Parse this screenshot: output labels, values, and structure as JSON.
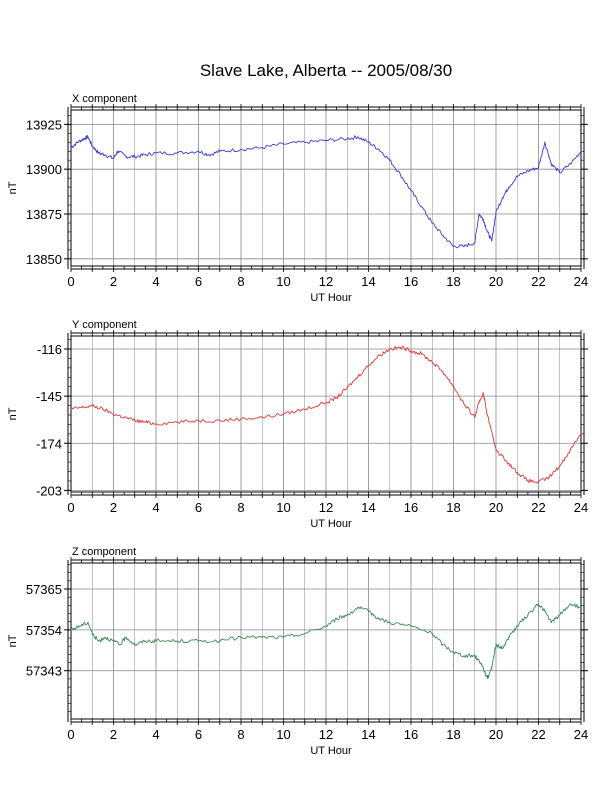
{
  "title": "Slave Lake, Alberta -- 2005/08/30",
  "chart_data": [
    {
      "type": "line",
      "panel_title": "X component",
      "xlabel": "UT Hour",
      "ylabel": "nT",
      "xlim": [
        0,
        24
      ],
      "ylim": [
        13846,
        13933
      ],
      "xticks": [
        0,
        2,
        4,
        6,
        8,
        10,
        12,
        14,
        16,
        18,
        20,
        22,
        24
      ],
      "yticks": [
        13850,
        13875,
        13900,
        13925
      ],
      "grid": true,
      "color": "#3d3dd6",
      "series": [
        {
          "x": [
            0,
            0.3,
            0.6,
            0.8,
            1.0,
            1.3,
            1.6,
            2.0,
            2.2,
            2.6,
            3.0,
            3.5,
            4.0,
            5.0,
            6.0,
            6.5,
            7.0,
            8.0,
            9.0,
            10.0,
            11.0,
            12.0,
            13.0,
            13.5,
            14.0,
            14.5,
            15.0,
            15.5,
            16.0,
            16.5,
            17.0,
            17.5,
            18.0,
            18.5,
            19.0,
            19.2,
            19.4,
            19.6,
            19.8,
            20.0,
            20.3,
            20.6,
            21.0,
            21.5,
            22.0,
            22.3,
            22.6,
            23.0,
            23.5,
            24.0
          ],
          "y": [
            13912,
            13915,
            13917,
            13918,
            13913,
            13909,
            13908,
            13906,
            13910,
            13907,
            13907,
            13908,
            13909,
            13909,
            13910,
            13908,
            13910,
            13911,
            13912,
            13914,
            13915,
            13916,
            13917,
            13918,
            13915,
            13911,
            13905,
            13897,
            13888,
            13879,
            13870,
            13863,
            13857,
            13857,
            13859,
            13875,
            13872,
            13865,
            13860,
            13876,
            13884,
            13890,
            13896,
            13899,
            13901,
            13915,
            13903,
            13898,
            13903,
            13910
          ]
        }
      ]
    },
    {
      "type": "line",
      "panel_title": "Y component",
      "xlabel": "UT Hour",
      "ylabel": "nT",
      "xlim": [
        0,
        24
      ],
      "ylim": [
        -204,
        -108
      ],
      "xticks": [
        0,
        2,
        4,
        6,
        8,
        10,
        12,
        14,
        16,
        18,
        20,
        22,
        24
      ],
      "yticks": [
        -116,
        -145,
        -174,
        -203
      ],
      "grid": true,
      "color": "#e23a3a",
      "series": [
        {
          "x": [
            0,
            0.5,
            1.0,
            1.5,
            2.0,
            2.5,
            3.0,
            3.5,
            4.0,
            5.0,
            6.0,
            7.0,
            8.0,
            9.0,
            10.0,
            11.0,
            12.0,
            12.5,
            13.0,
            13.5,
            14.0,
            14.5,
            15.0,
            15.5,
            16.0,
            16.5,
            17.0,
            17.5,
            18.0,
            18.5,
            19.0,
            19.2,
            19.4,
            19.6,
            20.0,
            20.5,
            21.0,
            21.5,
            22.0,
            22.5,
            23.0,
            23.5,
            24.0
          ],
          "y": [
            -153,
            -152,
            -151,
            -153,
            -156,
            -158,
            -160,
            -161,
            -162,
            -161,
            -160,
            -160,
            -159,
            -158,
            -156,
            -153,
            -149,
            -146,
            -140,
            -133,
            -126,
            -120,
            -116,
            -115,
            -117,
            -119,
            -124,
            -130,
            -139,
            -150,
            -158,
            -149,
            -143,
            -157,
            -178,
            -185,
            -192,
            -197,
            -198,
            -195,
            -188,
            -178,
            -168
          ]
        }
      ]
    },
    {
      "type": "line",
      "panel_title": "Z component",
      "xlabel": "UT Hour",
      "ylabel": "nT",
      "xlim": [
        0,
        24
      ],
      "ylim": [
        57330,
        57372
      ],
      "xticks": [
        0,
        2,
        4,
        6,
        8,
        10,
        12,
        14,
        16,
        18,
        20,
        22,
        24
      ],
      "yticks": [
        57343,
        57354,
        57365
      ],
      "grid": true,
      "color": "#3a8a55",
      "series": [
        {
          "x": [
            0,
            0.4,
            0.8,
            1.0,
            1.3,
            1.6,
            2.0,
            2.3,
            2.6,
            3.0,
            3.5,
            4.0,
            5.0,
            6.0,
            7.0,
            8.0,
            9.0,
            10.0,
            11.0,
            12.0,
            12.5,
            13.0,
            13.5,
            14.0,
            14.5,
            15.0,
            16.0,
            17.0,
            17.5,
            18.0,
            18.5,
            19.0,
            19.3,
            19.6,
            19.8,
            20.0,
            20.3,
            20.6,
            21.0,
            21.5,
            22.0,
            22.3,
            22.6,
            23.0,
            23.5,
            24.0
          ],
          "y": [
            57354,
            57355,
            57356,
            57353,
            57351,
            57352,
            57351,
            57350,
            57352,
            57350,
            57351,
            57351,
            57351,
            57351,
            57351,
            57352,
            57352,
            57352,
            57353,
            57355,
            57357,
            57358,
            57360,
            57359,
            57357,
            57356,
            57355,
            57353,
            57350,
            57348,
            57347,
            57347,
            57345,
            57341,
            57344,
            57350,
            57349,
            57352,
            57355,
            57358,
            57361,
            57359,
            57356,
            57358,
            57361,
            57360
          ]
        }
      ]
    }
  ]
}
